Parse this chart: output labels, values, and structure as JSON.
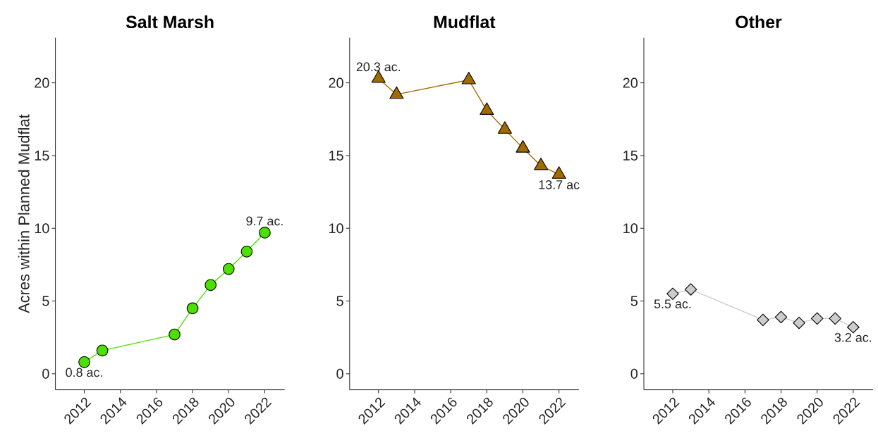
{
  "chart_data": [
    {
      "type": "line",
      "title": "Salt Marsh",
      "ylabel": "Acres within Planned Mudflat",
      "x": [
        2012,
        2013,
        2017,
        2018,
        2019,
        2020,
        2021,
        2022
      ],
      "values": [
        0.8,
        1.6,
        2.7,
        4.5,
        6.1,
        7.2,
        8.4,
        9.7
      ],
      "color": "#4ce000",
      "marker": "circle",
      "value_labels": [
        "0.8 ac.",
        null,
        null,
        null,
        null,
        null,
        null,
        "9.7 ac."
      ],
      "xlim": [
        2010.4,
        2023.1
      ],
      "ylim": [
        -1.1,
        23.1
      ],
      "xticks": [
        2012,
        2014,
        2016,
        2018,
        2020,
        2022
      ],
      "yticks": [
        0,
        5,
        10,
        15,
        20
      ]
    },
    {
      "type": "line",
      "title": "Mudflat",
      "x": [
        2012,
        2013,
        2017,
        2018,
        2019,
        2020,
        2021,
        2022
      ],
      "values": [
        20.3,
        19.2,
        20.2,
        18.1,
        16.8,
        15.5,
        14.3,
        13.7
      ],
      "color": "#a06b00",
      "marker": "triangle",
      "value_labels": [
        "20.3 ac.",
        null,
        null,
        null,
        null,
        null,
        null,
        "13.7 ac"
      ],
      "xlim": [
        2010.4,
        2023.1
      ],
      "ylim": [
        -1.1,
        23.1
      ],
      "xticks": [
        2012,
        2014,
        2016,
        2018,
        2020,
        2022
      ],
      "yticks": [
        0,
        5,
        10,
        15,
        20
      ]
    },
    {
      "type": "line",
      "title": "Other",
      "x": [
        2012,
        2013,
        2017,
        2018,
        2019,
        2020,
        2021,
        2022
      ],
      "values": [
        5.5,
        5.8,
        3.7,
        3.9,
        3.5,
        3.8,
        3.8,
        3.2
      ],
      "color": "#cccccc",
      "marker": "diamond",
      "value_labels": [
        "5.5 ac.",
        null,
        null,
        null,
        null,
        null,
        null,
        "3.2 ac."
      ],
      "xlim": [
        2010.4,
        2023.1
      ],
      "ylim": [
        -1.1,
        23.1
      ],
      "xticks": [
        2012,
        2014,
        2016,
        2018,
        2020,
        2022
      ],
      "yticks": [
        0,
        5,
        10,
        15,
        20
      ]
    }
  ]
}
